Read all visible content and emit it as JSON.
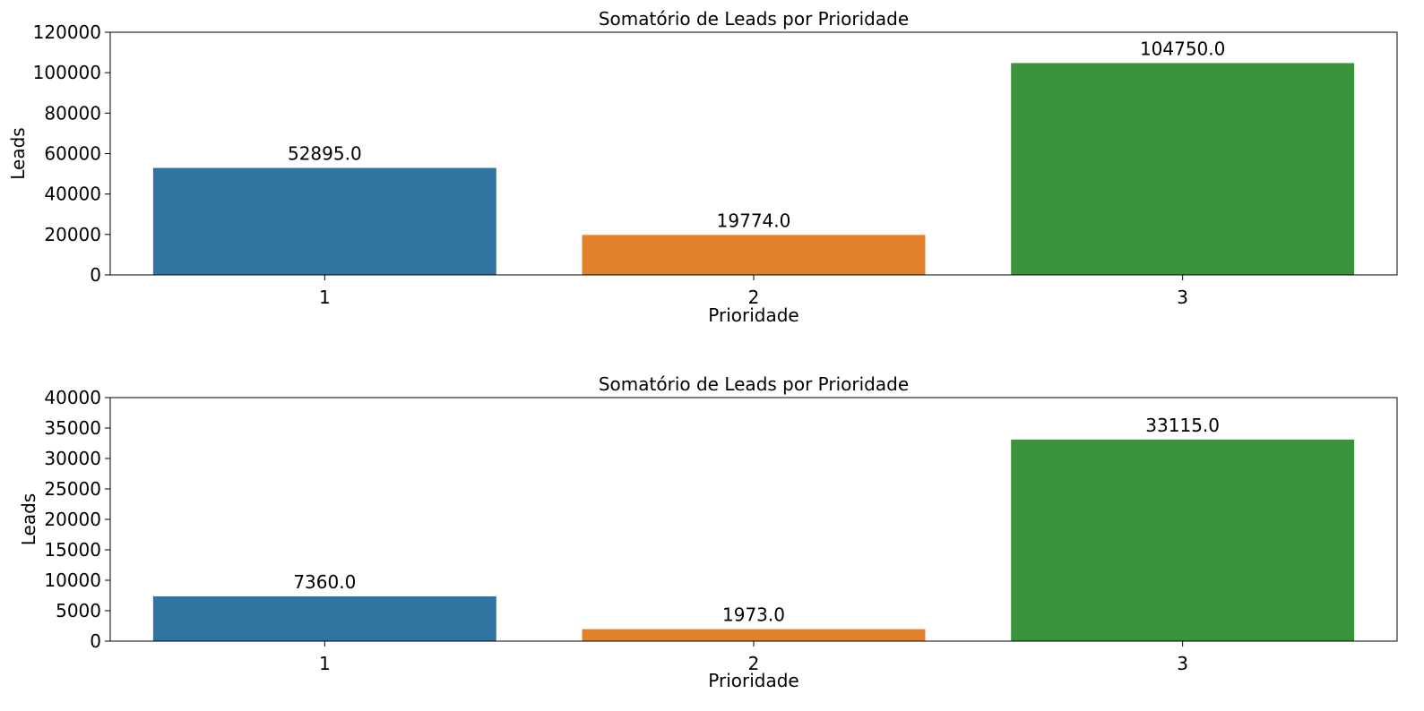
{
  "chart_data": [
    {
      "type": "bar",
      "title": "Somatório de Leads por Prioridade",
      "xlabel": "Prioridade",
      "ylabel": "Leads",
      "categories": [
        "1",
        "2",
        "3"
      ],
      "values": [
        52895.0,
        19774.0,
        104750.0
      ],
      "data_labels": [
        "52895.0",
        "19774.0",
        "104750.0"
      ],
      "colors": [
        "#3274a1",
        "#e1812c",
        "#3a923a"
      ],
      "ylim": [
        0,
        120000
      ],
      "yticks": [
        0,
        20000,
        40000,
        60000,
        80000,
        100000,
        120000
      ],
      "ytick_labels": [
        "0",
        "20000",
        "40000",
        "60000",
        "80000",
        "100000",
        "120000"
      ],
      "grid": false,
      "legend": "none"
    },
    {
      "type": "bar",
      "title": "Somatório de Leads por Prioridade",
      "xlabel": "Prioridade",
      "ylabel": "Leads",
      "categories": [
        "1",
        "2",
        "3"
      ],
      "values": [
        7360.0,
        1973.0,
        33115.0
      ],
      "data_labels": [
        "7360.0",
        "1973.0",
        "33115.0"
      ],
      "colors": [
        "#3274a1",
        "#e1812c",
        "#3a923a"
      ],
      "ylim": [
        0,
        40000
      ],
      "yticks": [
        0,
        5000,
        10000,
        15000,
        20000,
        25000,
        30000,
        35000,
        40000
      ],
      "ytick_labels": [
        "0",
        "5000",
        "10000",
        "15000",
        "20000",
        "25000",
        "30000",
        "35000",
        "40000"
      ],
      "grid": false,
      "legend": "none"
    }
  ]
}
